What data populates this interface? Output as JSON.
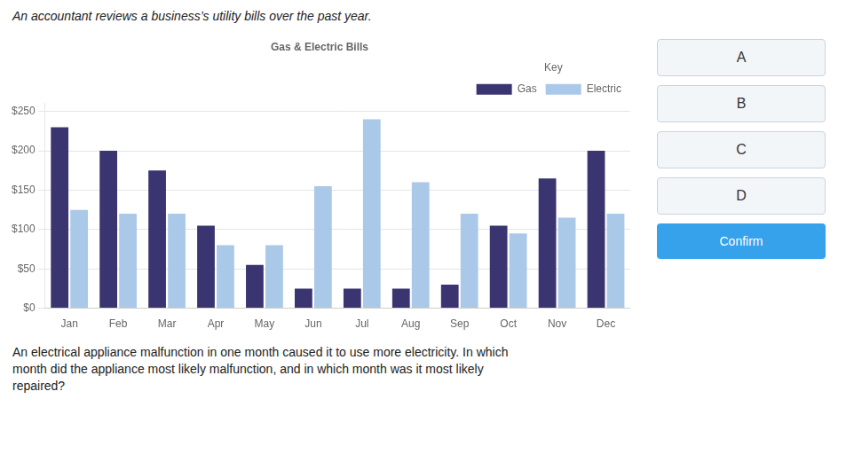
{
  "chart_data": {
    "type": "bar",
    "title": "Gas & Electric Bills",
    "categories": [
      "Jan",
      "Feb",
      "Mar",
      "Apr",
      "May",
      "Jun",
      "Jul",
      "Aug",
      "Sep",
      "Oct",
      "Nov",
      "Dec"
    ],
    "series": [
      {
        "name": "Gas",
        "color": "#3a3570",
        "values": [
          230,
          200,
          175,
          105,
          55,
          25,
          25,
          25,
          30,
          105,
          165,
          200
        ]
      },
      {
        "name": "Electric",
        "color": "#aac8e8",
        "values": [
          125,
          120,
          120,
          80,
          80,
          155,
          240,
          160,
          120,
          95,
          115,
          120
        ]
      }
    ],
    "ylim": [
      0,
      260
    ],
    "yticks": [
      {
        "value": 0,
        "label": "$0"
      },
      {
        "value": 50,
        "label": "$50"
      },
      {
        "value": 100,
        "label": "$100"
      },
      {
        "value": 150,
        "label": "$150"
      },
      {
        "value": 200,
        "label": "$200"
      },
      {
        "value": 250,
        "label": "$250"
      }
    ],
    "grid": true,
    "legend": "upper right",
    "legend_title": "Key",
    "annotations": [
      "An accountant reviews a business’s utility bills over the past year.",
      "An electrical appliance malfunction in one month caused it to use more electricity. In which\nmonth did the appliance most likely malfunction, and in which month was it most likely\nrepaired?"
    ],
    "options": [
      "A",
      "B",
      "C",
      "D"
    ],
    "button": "Confirm"
  }
}
